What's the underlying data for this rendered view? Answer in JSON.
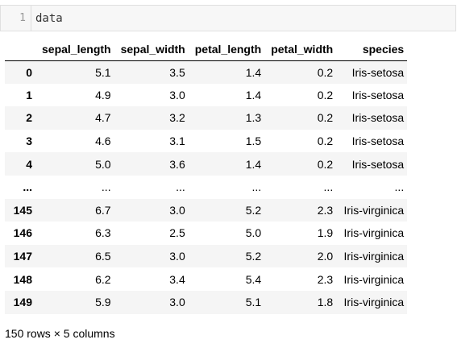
{
  "code_cell": {
    "line_number": "1",
    "code": "data"
  },
  "table": {
    "columns": [
      "sepal_length",
      "sepal_width",
      "petal_length",
      "petal_width",
      "species"
    ],
    "rows": [
      {
        "index": "0",
        "values": [
          "5.1",
          "3.5",
          "1.4",
          "0.2",
          "Iris-setosa"
        ]
      },
      {
        "index": "1",
        "values": [
          "4.9",
          "3.0",
          "1.4",
          "0.2",
          "Iris-setosa"
        ]
      },
      {
        "index": "2",
        "values": [
          "4.7",
          "3.2",
          "1.3",
          "0.2",
          "Iris-setosa"
        ]
      },
      {
        "index": "3",
        "values": [
          "4.6",
          "3.1",
          "1.5",
          "0.2",
          "Iris-setosa"
        ]
      },
      {
        "index": "4",
        "values": [
          "5.0",
          "3.6",
          "1.4",
          "0.2",
          "Iris-setosa"
        ]
      },
      {
        "index": "...",
        "values": [
          "...",
          "...",
          "...",
          "...",
          "..."
        ]
      },
      {
        "index": "145",
        "values": [
          "6.7",
          "3.0",
          "5.2",
          "2.3",
          "Iris-virginica"
        ]
      },
      {
        "index": "146",
        "values": [
          "6.3",
          "2.5",
          "5.0",
          "1.9",
          "Iris-virginica"
        ]
      },
      {
        "index": "147",
        "values": [
          "6.5",
          "3.0",
          "5.2",
          "2.0",
          "Iris-virginica"
        ]
      },
      {
        "index": "148",
        "values": [
          "6.2",
          "3.4",
          "5.4",
          "2.3",
          "Iris-virginica"
        ]
      },
      {
        "index": "149",
        "values": [
          "5.9",
          "3.0",
          "5.1",
          "1.8",
          "Iris-virginica"
        ]
      }
    ]
  },
  "shape_text": "150 rows × 5 columns",
  "colors": {
    "code_background": "#f7f7f7",
    "striped_row": "#f5f5f5",
    "line_number": "#999999"
  }
}
